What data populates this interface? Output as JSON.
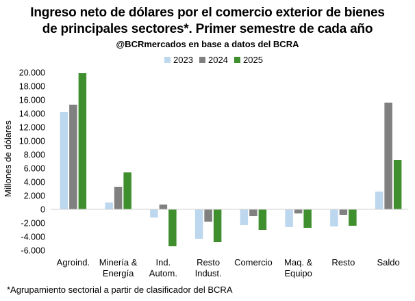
{
  "header": {
    "title_line1": "Ingreso neto de dólares por el comercio exterior de bienes",
    "title_line2": "de principales sectores*. Primer semestre de cada año",
    "subtitle": "@BCRmercados en base a datos del BCRA"
  },
  "footnote": "*Agrupamiento sectorial a partir de clasificador del BCRA",
  "chart_data": {
    "type": "bar",
    "title": "Ingreso neto de dólares por el comercio exterior de bienes de principales sectores*. Primer semestre de cada año",
    "ylabel": "Millones de dólares",
    "xlabel": "",
    "ylim": [
      -6000,
      20000
    ],
    "yticks": [
      -6000,
      -4000,
      -2000,
      0,
      2000,
      4000,
      6000,
      8000,
      10000,
      12000,
      14000,
      16000,
      18000,
      20000
    ],
    "ytick_labels": [
      "-6.000",
      "-4.000",
      "-2.000",
      "0",
      "2.000",
      "4.000",
      "6.000",
      "8.000",
      "10.000",
      "12.000",
      "14.000",
      "16.000",
      "18.000",
      "20.000"
    ],
    "grid": false,
    "legend_position": "top",
    "categories": [
      [
        "Agroind."
      ],
      [
        "Minería &",
        "Energía"
      ],
      [
        "Ind.",
        "Autom."
      ],
      [
        "Resto",
        "Indust."
      ],
      [
        "Comercio"
      ],
      [
        "Maq. &",
        "Equipo"
      ],
      [
        "Resto"
      ],
      [
        "Saldo"
      ]
    ],
    "series": [
      {
        "name": "2023",
        "color": "#bdd7ee",
        "values": [
          14200,
          1000,
          -1200,
          -4300,
          -2300,
          -2600,
          -2500,
          2600
        ]
      },
      {
        "name": "2024",
        "color": "#808080",
        "values": [
          15300,
          3300,
          700,
          -1800,
          -1000,
          -600,
          -800,
          15600
        ]
      },
      {
        "name": "2025",
        "color": "#3f8f2f",
        "values": [
          19900,
          5400,
          -5400,
          -4800,
          -3000,
          -2700,
          -2400,
          7200
        ]
      }
    ]
  }
}
